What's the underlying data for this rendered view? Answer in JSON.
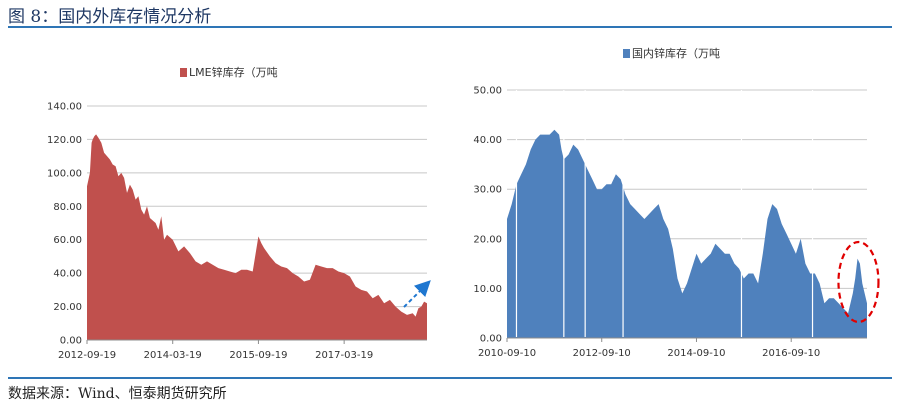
{
  "header": {
    "figure_title": "图 8：国内外库存情况分析"
  },
  "footer": {
    "source": "数据来源：Wind、恒泰期货研究所"
  },
  "colors": {
    "lme": "#c0504d",
    "domestic": "#4f81bd",
    "rule": "#2e75b6",
    "highlight": "#e00000",
    "arrow": "#1f77d0"
  },
  "chart_data": [
    {
      "type": "area",
      "legend": "LME锌库存（万吨",
      "legend_position": "top",
      "y_ticks": [
        "0.00",
        "20.00",
        "40.00",
        "60.00",
        "80.00",
        "100.00",
        "120.00",
        "140.00"
      ],
      "ylim": [
        0,
        140
      ],
      "x_ticks": [
        "2012-09-19",
        "2014-03-19",
        "2015-09-19",
        "2017-03-19"
      ],
      "x_tick_positions": [
        0,
        1.5,
        3,
        4.5
      ],
      "xlim": [
        0,
        5.95
      ],
      "grid": true,
      "x": [
        0,
        0.05,
        0.08,
        0.1,
        0.13,
        0.16,
        0.2,
        0.25,
        0.3,
        0.35,
        0.4,
        0.45,
        0.5,
        0.55,
        0.6,
        0.65,
        0.7,
        0.75,
        0.8,
        0.85,
        0.9,
        0.95,
        1.0,
        1.05,
        1.1,
        1.2,
        1.25,
        1.3,
        1.35,
        1.4,
        1.5,
        1.6,
        1.7,
        1.8,
        1.9,
        2.0,
        2.1,
        2.2,
        2.3,
        2.4,
        2.5,
        2.6,
        2.7,
        2.8,
        2.9,
        3.0,
        3.05,
        3.1,
        3.2,
        3.3,
        3.4,
        3.5,
        3.6,
        3.7,
        3.8,
        3.9,
        4.0,
        4.1,
        4.2,
        4.3,
        4.4,
        4.5,
        4.6,
        4.7,
        4.8,
        4.9,
        5.0,
        5.1,
        5.2,
        5.3,
        5.4,
        5.5,
        5.6,
        5.7,
        5.75,
        5.8,
        5.85,
        5.9,
        5.95
      ],
      "values": [
        92,
        100,
        118,
        120,
        122,
        123,
        121,
        118,
        112,
        110,
        108,
        105,
        104,
        98,
        100,
        97,
        88,
        93,
        90,
        84,
        86,
        78,
        75,
        80,
        73,
        70,
        66,
        74,
        60,
        63,
        60,
        53,
        56,
        52,
        47,
        45,
        47,
        45,
        43,
        42,
        41,
        40,
        42,
        42,
        41,
        62,
        58,
        55,
        50,
        46,
        44,
        43,
        40,
        38,
        35,
        36,
        45,
        44,
        43,
        43,
        41,
        40,
        38,
        32,
        30,
        29,
        25,
        27,
        22,
        24,
        20,
        17,
        15,
        16,
        14,
        19,
        20,
        23,
        22
      ]
    },
    {
      "type": "area",
      "legend": "国内锌库存（万吨",
      "legend_position": "top",
      "y_ticks": [
        "0.00",
        "10.00",
        "20.00",
        "30.00",
        "40.00",
        "50.00"
      ],
      "ylim": [
        0,
        50
      ],
      "x_ticks": [
        "2010-09-10",
        "2012-09-10",
        "2014-09-10",
        "2016-09-10"
      ],
      "x_tick_positions": [
        0,
        2,
        4,
        6
      ],
      "xlim": [
        0,
        7.6
      ],
      "grid": true,
      "x": [
        0,
        0.1,
        0.2,
        0.3,
        0.4,
        0.5,
        0.6,
        0.7,
        0.8,
        0.9,
        1.0,
        1.1,
        1.15,
        1.2,
        1.3,
        1.4,
        1.5,
        1.6,
        1.7,
        1.8,
        1.9,
        2.0,
        2.1,
        2.2,
        2.3,
        2.4,
        2.5,
        2.6,
        2.7,
        2.8,
        2.9,
        3.0,
        3.1,
        3.2,
        3.3,
        3.4,
        3.5,
        3.6,
        3.7,
        3.8,
        3.9,
        4.0,
        4.1,
        4.2,
        4.3,
        4.4,
        4.5,
        4.6,
        4.7,
        4.8,
        4.9,
        5.0,
        5.1,
        5.2,
        5.3,
        5.4,
        5.5,
        5.6,
        5.7,
        5.8,
        5.9,
        6.0,
        6.1,
        6.2,
        6.3,
        6.4,
        6.5,
        6.6,
        6.7,
        6.8,
        6.9,
        7.0,
        7.1,
        7.2,
        7.3,
        7.35,
        7.4,
        7.45,
        7.5,
        7.6
      ],
      "values": [
        24,
        27,
        31,
        33,
        35,
        38,
        40,
        41,
        41,
        41,
        42,
        41,
        38,
        36,
        37,
        39,
        38,
        36,
        34,
        32,
        30,
        30,
        31,
        31,
        33,
        32,
        29,
        27,
        26,
        25,
        24,
        25,
        26,
        27,
        24,
        22,
        18,
        12,
        9,
        11,
        14,
        17,
        15,
        16,
        17,
        19,
        18,
        17,
        17,
        15,
        14,
        12,
        13,
        13,
        11,
        17,
        24,
        27,
        26,
        23,
        21,
        19,
        17,
        20,
        15,
        13,
        13,
        11,
        7,
        8,
        8,
        7,
        6,
        5,
        9,
        12,
        16,
        15,
        11,
        7
      ]
    }
  ]
}
